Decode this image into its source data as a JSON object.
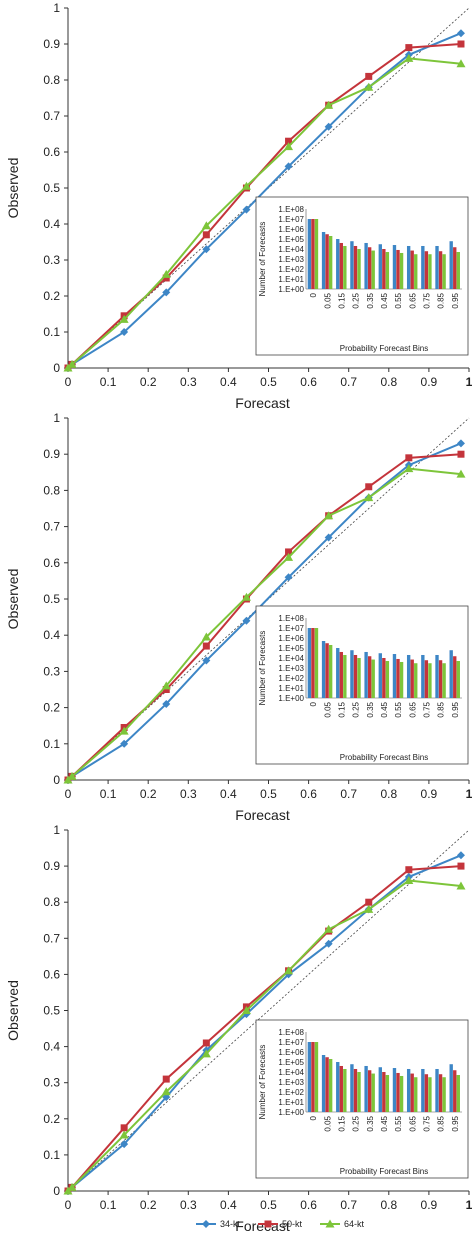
{
  "legend": [
    {
      "name": "34-kt",
      "color": "#3d86c6",
      "marker": "diamond"
    },
    {
      "name": "50-kt",
      "color": "#c4343b",
      "marker": "square"
    },
    {
      "name": "64-kt",
      "color": "#7dc53a",
      "marker": "triangle"
    }
  ],
  "chart_data": [
    {
      "type": "line",
      "xlabel": "Forecast",
      "ylabel": "Observed",
      "xlim": [
        0,
        1
      ],
      "ylim": [
        0,
        1
      ],
      "xticks": [
        "0",
        "0.1",
        "0.2",
        "0.3",
        "0.4",
        "0.5",
        "0.6",
        "0.7",
        "0.8",
        "0.9",
        "1"
      ],
      "yticks": [
        "0",
        "0.1",
        "0.2",
        "0.3",
        "0.4",
        "0.5",
        "0.6",
        "0.7",
        "0.8",
        "0.9",
        "1"
      ],
      "diagonal": true,
      "grid": false,
      "x": [
        0,
        0.01,
        0.14,
        0.245,
        0.345,
        0.445,
        0.55,
        0.65,
        0.75,
        0.85,
        0.98
      ],
      "series": [
        {
          "name": "34-kt",
          "values": [
            0.0,
            0.01,
            0.1,
            0.21,
            0.33,
            0.44,
            0.56,
            0.67,
            0.78,
            0.87,
            0.93
          ]
        },
        {
          "name": "50-kt",
          "values": [
            0.0,
            0.01,
            0.145,
            0.25,
            0.37,
            0.5,
            0.63,
            0.73,
            0.81,
            0.89,
            0.9
          ]
        },
        {
          "name": "64-kt",
          "values": [
            0.0,
            0.01,
            0.135,
            0.26,
            0.395,
            0.505,
            0.615,
            0.73,
            0.78,
            0.86,
            0.845
          ]
        }
      ],
      "inset": {
        "type": "bar",
        "xlabel": "Probability Forecast Bins",
        "ylabel": "Number of Forecasts",
        "log_scale": true,
        "yticks": [
          "1.E+00",
          "1.E+01",
          "1.E+02",
          "1.E+03",
          "1.E+04",
          "1.E+05",
          "1.E+06",
          "1.E+07",
          "1.E+08"
        ],
        "categories": [
          "0",
          "0.05",
          "0.15",
          "0.25",
          "0.35",
          "0.45",
          "0.55",
          "0.65",
          "0.75",
          "0.85",
          "0.95"
        ],
        "series": [
          {
            "name": "34-kt",
            "values": [
              10000000,
              500000,
              100000,
              60000,
              40000,
              30000,
              25000,
              20000,
              20000,
              20000,
              60000
            ]
          },
          {
            "name": "50-kt",
            "values": [
              10000000,
              300000,
              40000,
              20000,
              15000,
              10000,
              8000,
              7000,
              6000,
              6000,
              15000
            ]
          },
          {
            "name": "64-kt",
            "values": [
              10000000,
              200000,
              20000,
              10000,
              7000,
              5000,
              4000,
              3000,
              3000,
              3000,
              5000
            ]
          }
        ]
      }
    },
    {
      "type": "line",
      "xlabel": "Forecast",
      "ylabel": "Observed",
      "xlim": [
        0,
        1
      ],
      "ylim": [
        0,
        1
      ],
      "xticks": [
        "0",
        "0.1",
        "0.2",
        "0.3",
        "0.4",
        "0.5",
        "0.6",
        "0.7",
        "0.8",
        "0.9",
        "1"
      ],
      "yticks": [
        "0",
        "0.1",
        "0.2",
        "0.3",
        "0.4",
        "0.5",
        "0.6",
        "0.7",
        "0.8",
        "0.9",
        "1"
      ],
      "diagonal": true,
      "grid": false,
      "x": [
        0,
        0.01,
        0.14,
        0.245,
        0.345,
        0.445,
        0.55,
        0.65,
        0.75,
        0.85,
        0.98
      ],
      "series": [
        {
          "name": "34-kt",
          "values": [
            0.0,
            0.01,
            0.1,
            0.21,
            0.33,
            0.44,
            0.56,
            0.67,
            0.78,
            0.87,
            0.93
          ]
        },
        {
          "name": "50-kt",
          "values": [
            0.0,
            0.01,
            0.145,
            0.25,
            0.37,
            0.5,
            0.63,
            0.73,
            0.81,
            0.89,
            0.9
          ]
        },
        {
          "name": "64-kt",
          "values": [
            0.0,
            0.01,
            0.135,
            0.26,
            0.395,
            0.505,
            0.615,
            0.73,
            0.78,
            0.86,
            0.845
          ]
        }
      ],
      "inset": {
        "type": "bar",
        "xlabel": "Probability Forecast Bins",
        "ylabel": "Number of Forecasts",
        "log_scale": true,
        "yticks": [
          "1.E+00",
          "1.E+01",
          "1.E+02",
          "1.E+03",
          "1.E+04",
          "1.E+05",
          "1.E+06",
          "1.E+07",
          "1.E+08"
        ],
        "categories": [
          "0",
          "0.05",
          "0.15",
          "0.25",
          "0.35",
          "0.45",
          "0.55",
          "0.65",
          "0.75",
          "0.85",
          "0.95"
        ],
        "series": [
          {
            "name": "34-kt",
            "values": [
              10000000,
              500000,
              100000,
              60000,
              40000,
              30000,
              25000,
              20000,
              20000,
              20000,
              60000
            ]
          },
          {
            "name": "50-kt",
            "values": [
              10000000,
              300000,
              40000,
              20000,
              15000,
              10000,
              8000,
              7000,
              6000,
              6000,
              15000
            ]
          },
          {
            "name": "64-kt",
            "values": [
              10000000,
              200000,
              20000,
              10000,
              7000,
              5000,
              4000,
              3000,
              3000,
              3000,
              5000
            ]
          }
        ]
      }
    },
    {
      "type": "line",
      "xlabel": "Forecast",
      "ylabel": "Observed",
      "xlim": [
        0,
        1
      ],
      "ylim": [
        0,
        1
      ],
      "xticks": [
        "0",
        "0.1",
        "0.2",
        "0.3",
        "0.4",
        "0.5",
        "0.6",
        "0.7",
        "0.8",
        "0.9",
        "1"
      ],
      "yticks": [
        "0",
        "0.1",
        "0.2",
        "0.3",
        "0.4",
        "0.5",
        "0.6",
        "0.7",
        "0.8",
        "0.9",
        "1"
      ],
      "diagonal": true,
      "grid": false,
      "x": [
        0,
        0.01,
        0.14,
        0.245,
        0.345,
        0.445,
        0.55,
        0.65,
        0.75,
        0.85,
        0.98
      ],
      "series": [
        {
          "name": "34-kt",
          "values": [
            0.0,
            0.01,
            0.13,
            0.26,
            0.39,
            0.49,
            0.6,
            0.685,
            0.78,
            0.87,
            0.93
          ]
        },
        {
          "name": "50-kt",
          "values": [
            0.0,
            0.01,
            0.175,
            0.31,
            0.41,
            0.51,
            0.61,
            0.72,
            0.8,
            0.89,
            0.9
          ]
        },
        {
          "name": "64-kt",
          "values": [
            0.0,
            0.01,
            0.155,
            0.275,
            0.38,
            0.5,
            0.61,
            0.725,
            0.78,
            0.86,
            0.845
          ]
        }
      ],
      "inset": {
        "type": "bar",
        "xlabel": "Probability Forecast Bins",
        "ylabel": "Number of Forecasts",
        "log_scale": true,
        "yticks": [
          "1.E+00",
          "1.E+01",
          "1.E+02",
          "1.E+03",
          "1.E+04",
          "1.E+05",
          "1.E+06",
          "1.E+07",
          "1.E+08"
        ],
        "categories": [
          "0",
          "0.05",
          "0.15",
          "0.25",
          "0.35",
          "0.45",
          "0.55",
          "0.65",
          "0.75",
          "0.85",
          "0.95"
        ],
        "series": [
          {
            "name": "34-kt",
            "values": [
              10000000,
              500000,
              100000,
              60000,
              40000,
              30000,
              25000,
              20000,
              20000,
              20000,
              60000
            ]
          },
          {
            "name": "50-kt",
            "values": [
              10000000,
              300000,
              40000,
              20000,
              15000,
              10000,
              8000,
              7000,
              6000,
              6000,
              15000
            ]
          },
          {
            "name": "64-kt",
            "values": [
              10000000,
              200000,
              20000,
              10000,
              7000,
              5000,
              4000,
              3000,
              3000,
              3000,
              5000
            ]
          }
        ]
      }
    }
  ]
}
